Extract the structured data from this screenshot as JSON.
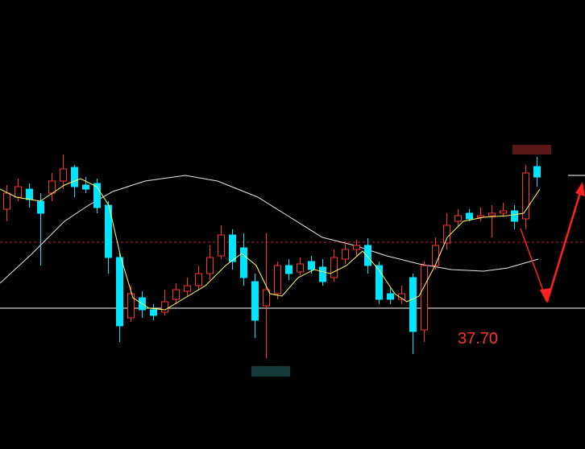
{
  "chart_data": {
    "type": "candlestick",
    "open": [
      38.93,
      39.08,
      39.18,
      39.03,
      39.13,
      39.28,
      39.45,
      39.23,
      39.25,
      38.98,
      38.33,
      37.58,
      37.83,
      37.68,
      37.65,
      37.81,
      37.91,
      37.98,
      38.13,
      38.35,
      38.61,
      38.45,
      38.03,
      37.73,
      37.88,
      38.23,
      38.15,
      38.28,
      38.21,
      38.08,
      38.31,
      38.43,
      38.48,
      38.23,
      37.88,
      37.81,
      38.08,
      37.43,
      38.23,
      38.51,
      38.78,
      38.88,
      38.83,
      38.85,
      38.88,
      38.91,
      38.81,
      39.46
    ],
    "high": [
      39.23,
      39.31,
      39.25,
      39.13,
      39.38,
      39.61,
      39.48,
      39.33,
      39.31,
      39.03,
      38.38,
      37.98,
      37.91,
      37.75,
      37.93,
      38.01,
      38.08,
      38.23,
      38.48,
      38.73,
      38.68,
      38.63,
      38.13,
      38.63,
      38.28,
      38.31,
      38.33,
      38.35,
      38.31,
      38.43,
      38.53,
      38.55,
      38.57,
      38.28,
      37.95,
      37.98,
      38.13,
      38.28,
      38.58,
      38.88,
      38.93,
      38.93,
      38.95,
      38.98,
      39.01,
      38.98,
      39.48,
      39.58
    ],
    "low": [
      38.78,
      39.03,
      38.95,
      38.23,
      39.03,
      39.18,
      39.08,
      39.13,
      38.88,
      38.13,
      37.28,
      37.53,
      37.58,
      37.55,
      37.61,
      37.75,
      37.85,
      37.93,
      38.05,
      38.31,
      38.18,
      37.98,
      37.33,
      37.08,
      37.81,
      38.05,
      38.11,
      38.13,
      37.98,
      38.03,
      38.25,
      38.35,
      38.13,
      37.75,
      37.75,
      37.75,
      37.13,
      37.28,
      38.18,
      38.43,
      38.71,
      38.78,
      38.78,
      38.58,
      38.83,
      38.68,
      38.68,
      39.21
    ],
    "close": [
      39.13,
      39.21,
      39.05,
      38.88,
      39.28,
      39.43,
      39.21,
      39.18,
      38.95,
      38.33,
      37.48,
      37.88,
      37.68,
      37.61,
      37.78,
      37.93,
      37.98,
      38.13,
      38.33,
      38.61,
      38.28,
      38.08,
      37.55,
      37.93,
      38.23,
      38.13,
      38.25,
      38.18,
      38.03,
      38.33,
      38.43,
      38.48,
      38.23,
      37.81,
      37.81,
      37.88,
      37.41,
      38.23,
      38.48,
      38.73,
      38.85,
      38.81,
      38.85,
      38.88,
      38.91,
      38.78,
      39.38,
      39.33
    ],
    "ylim": [
      35.95,
      41.53
    ],
    "up_color": "#ff3232",
    "down_color": "#00e5ff",
    "reference_lines": [
      {
        "value": 37.7,
        "label": "37.70",
        "color": "#ffffff"
      },
      {
        "value": 38.52,
        "color": "#c02020",
        "dashed": true
      }
    ]
  }
}
